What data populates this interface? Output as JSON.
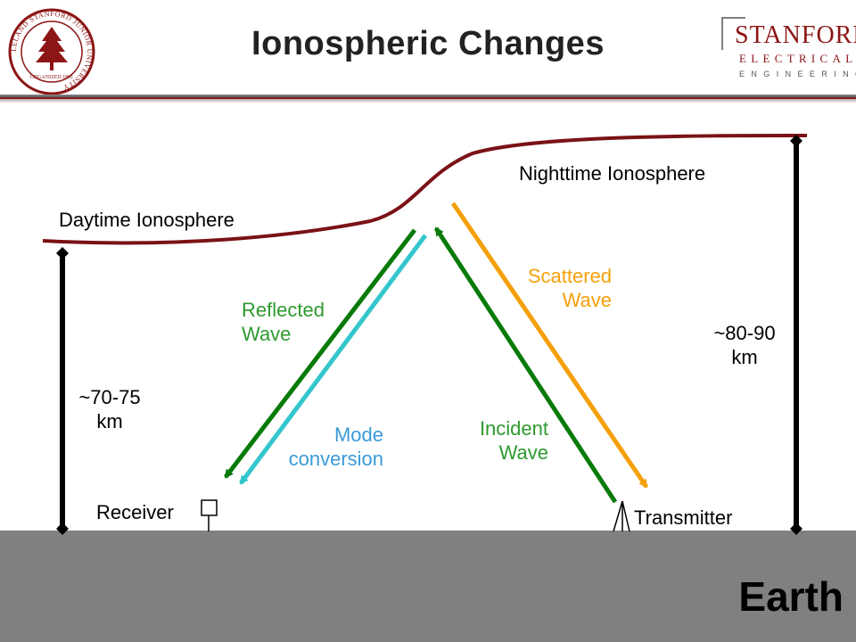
{
  "title": "Ionospheric Changes",
  "logo_left": {
    "ring_text": "LELAND STANFORD JUNIOR UNIVERSITY",
    "organized_text": "ORGANIZED 1891"
  },
  "logo_right": {
    "line1": "STANFORD",
    "line2": "ELECTRICAL",
    "line3": "ENGINEERING"
  },
  "labels": {
    "daytime": "Daytime Ionosphere",
    "nighttime": "Nighttime Ionosphere",
    "left_height": [
      "~70-75",
      "km"
    ],
    "right_height": [
      "~80-90",
      "km"
    ],
    "reflected": [
      "Reflected",
      "Wave"
    ],
    "scattered": [
      "Scattered",
      "Wave"
    ],
    "mode": [
      "Mode",
      "conversion"
    ],
    "incident": [
      "Incident",
      "Wave"
    ],
    "receiver": "Receiver",
    "transmitter": "Transmitter",
    "earth": "Earth"
  },
  "colors": {
    "ionosphere": "#7a1216",
    "reflected": "#087a08",
    "incident": "#087a08",
    "scattered": "#f5a00a",
    "mode": "#33c6cc",
    "reflected_text": "#2e9a2e",
    "incident_text": "#2e9a2e",
    "scattered_text": "#f5a00a",
    "mode_text": "#3a9ad8",
    "ground": "#808080",
    "brand": "#8c1515"
  }
}
